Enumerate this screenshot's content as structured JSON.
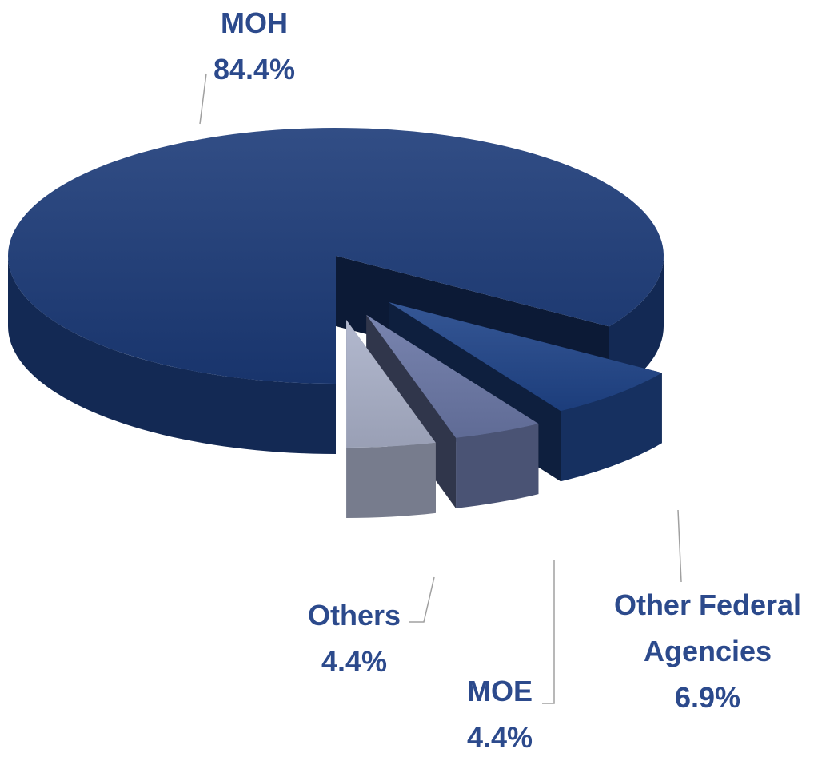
{
  "chart_data": {
    "type": "pie3d",
    "categories": [
      "MOH",
      "Other Federal Agencies",
      "MOE",
      "Others"
    ],
    "values": [
      84.4,
      6.9,
      4.4,
      4.4
    ],
    "value_labels": [
      "84.4%",
      "6.9%",
      "4.4%",
      "4.4%"
    ],
    "colors": [
      "#1b3a78",
      "#1f4489",
      "#6a77a6",
      "#aab1c9"
    ]
  }
}
